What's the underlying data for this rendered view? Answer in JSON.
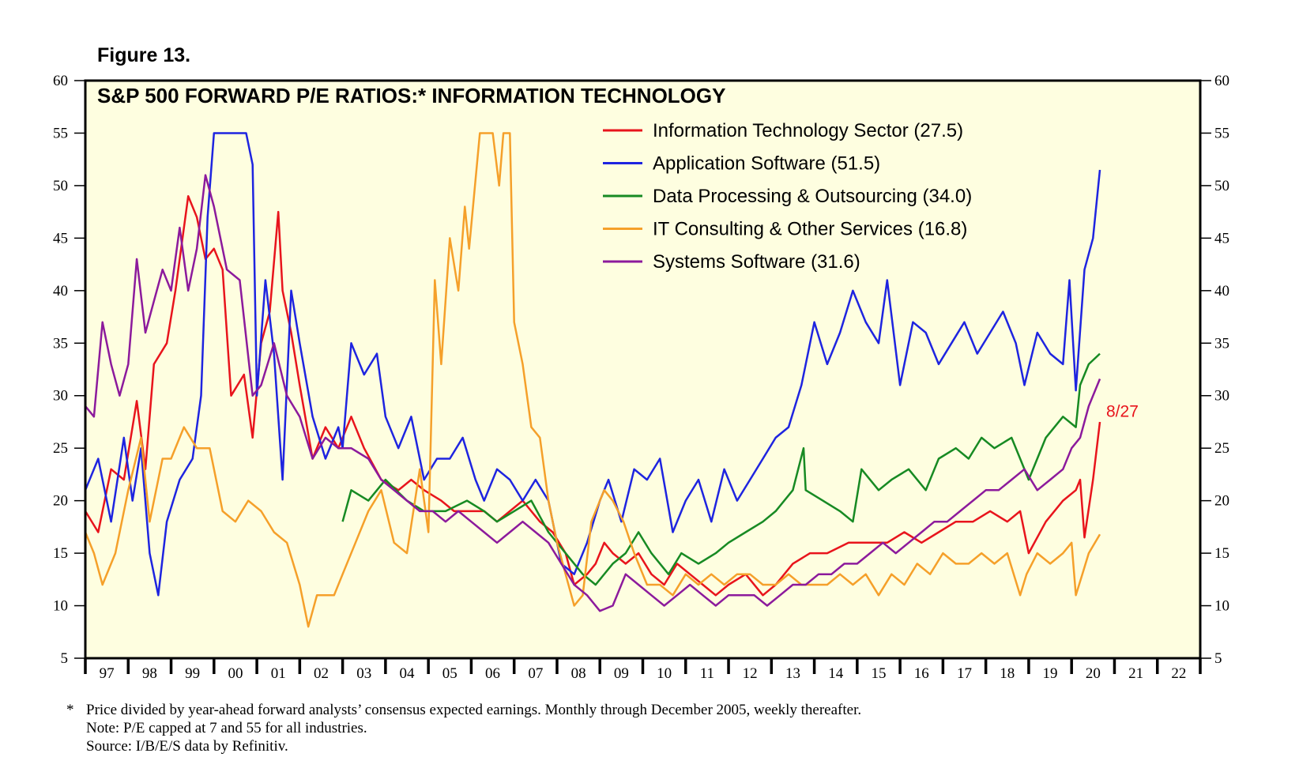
{
  "figure_label": "Figure 13.",
  "footnotes": {
    "star": "*",
    "lines": [
      "Price divided by year-ahead forward analysts’ consensus expected earnings. Monthly through December 2005, weekly thereafter.",
      "Note: P/E capped at 7 and 55 for all industries.",
      "Source: I/B/E/S data by Refinitiv."
    ]
  },
  "colors": {
    "plot_background": "#fefee0",
    "it_sector": "#e8141c",
    "application_software": "#1e24e0",
    "data_processing": "#178a23",
    "it_consulting": "#f5a02a",
    "systems_software": "#8c1a9c"
  },
  "chart_data": {
    "type": "line",
    "title": "S&P 500 FORWARD P/E RATIOS:* INFORMATION TECHNOLOGY",
    "xlabel": "",
    "ylabel": "",
    "xlim": [
      1997,
      2023
    ],
    "ylim": [
      5,
      60
    ],
    "y_ticks": [
      5,
      10,
      15,
      20,
      25,
      30,
      35,
      40,
      45,
      50,
      55,
      60
    ],
    "x_tick_labels": [
      "97",
      "98",
      "99",
      "00",
      "01",
      "02",
      "03",
      "04",
      "05",
      "06",
      "07",
      "08",
      "09",
      "10",
      "11",
      "12",
      "13",
      "14",
      "15",
      "16",
      "17",
      "18",
      "19",
      "20",
      "21",
      "22"
    ],
    "grid": false,
    "legend_position": "top-right",
    "annotation": {
      "text": "8/27",
      "x": 2020.66,
      "y": 28.5
    },
    "series": [
      {
        "key": "it_sector",
        "name": "Information Technology Sector (27.5)",
        "x": [
          1997.0,
          1997.3,
          1997.6,
          1997.9,
          1998.2,
          1998.4,
          1998.6,
          1998.9,
          1999.1,
          1999.4,
          1999.6,
          1999.8,
          2000.0,
          2000.2,
          2000.4,
          2000.7,
          2000.9,
          2001.1,
          2001.3,
          2001.5,
          2001.6,
          2001.8,
          2002.0,
          2002.3,
          2002.6,
          2002.9,
          2003.2,
          2003.5,
          2003.9,
          2004.3,
          2004.6,
          2004.9,
          2005.3,
          2005.6,
          2005.9,
          2006.3,
          2006.6,
          2006.9,
          2007.2,
          2007.6,
          2007.9,
          2008.2,
          2008.4,
          2008.7,
          2008.9,
          2009.1,
          2009.3,
          2009.6,
          2009.9,
          2010.2,
          2010.5,
          2010.8,
          2011.1,
          2011.4,
          2011.7,
          2012.0,
          2012.4,
          2012.8,
          2013.1,
          2013.5,
          2013.9,
          2014.3,
          2014.8,
          2015.2,
          2015.7,
          2016.1,
          2016.5,
          2016.9,
          2017.3,
          2017.7,
          2018.1,
          2018.5,
          2018.8,
          2019.0,
          2019.4,
          2019.8,
          2020.1,
          2020.2,
          2020.3,
          2020.5,
          2020.66
        ],
        "values": [
          19,
          17,
          23,
          22,
          29.5,
          23,
          33,
          35,
          40,
          49,
          47,
          43,
          44,
          42,
          30,
          32,
          26,
          35,
          38,
          47.5,
          40,
          36,
          31,
          24,
          27,
          25,
          28,
          25,
          22,
          21,
          22,
          21,
          20,
          19,
          19,
          19,
          18,
          19,
          20,
          18,
          17,
          15,
          12,
          13,
          14,
          16,
          15,
          14,
          15,
          13,
          12,
          14,
          13,
          12,
          11,
          12,
          13,
          11,
          12,
          14,
          15,
          15,
          16,
          16,
          16,
          17,
          16,
          17,
          18,
          18,
          19,
          18,
          19,
          15,
          18,
          20,
          21,
          22,
          16.5,
          22,
          27.5
        ]
      },
      {
        "key": "application_software",
        "name": "Application Software (51.5)",
        "x": [
          1997.0,
          1997.3,
          1997.6,
          1997.9,
          1998.1,
          1998.3,
          1998.5,
          1998.7,
          1998.9,
          1999.2,
          1999.5,
          1999.7,
          1999.85,
          2000.0,
          2000.3,
          2000.6,
          2000.75,
          2000.9,
          2001.0,
          2001.2,
          2001.4,
          2001.6,
          2001.8,
          2002.0,
          2002.3,
          2002.6,
          2002.9,
          2003.0,
          2003.2,
          2003.5,
          2003.8,
          2004.0,
          2004.3,
          2004.6,
          2004.9,
          2005.2,
          2005.5,
          2005.8,
          2006.1,
          2006.3,
          2006.6,
          2006.9,
          2007.2,
          2007.5,
          2007.8,
          2008.1,
          2008.4,
          2008.7,
          2009.0,
          2009.2,
          2009.5,
          2009.8,
          2010.1,
          2010.4,
          2010.7,
          2011.0,
          2011.3,
          2011.6,
          2011.9,
          2012.2,
          2012.5,
          2012.8,
          2013.1,
          2013.4,
          2013.7,
          2014.0,
          2014.3,
          2014.6,
          2014.9,
          2015.2,
          2015.5,
          2015.7,
          2016.0,
          2016.3,
          2016.6,
          2016.9,
          2017.2,
          2017.5,
          2017.8,
          2018.1,
          2018.4,
          2018.7,
          2018.9,
          2019.2,
          2019.5,
          2019.8,
          2019.95,
          2020.1,
          2020.3,
          2020.5,
          2020.66
        ],
        "values": [
          21,
          24,
          18,
          26,
          20,
          25,
          15,
          11,
          18,
          22,
          24,
          30,
          47,
          55,
          55,
          55,
          55,
          52,
          30,
          41,
          34,
          22,
          40,
          35,
          28,
          24,
          27,
          25,
          35,
          32,
          34,
          28,
          25,
          28,
          22,
          24,
          24,
          26,
          22,
          20,
          23,
          22,
          20,
          22,
          20,
          14,
          13,
          16,
          20,
          22,
          18,
          23,
          22,
          24,
          17,
          20,
          22,
          18,
          23,
          20,
          22,
          24,
          26,
          27,
          31,
          37,
          33,
          36,
          40,
          37,
          35,
          41,
          31,
          37,
          36,
          33,
          35,
          37,
          34,
          36,
          38,
          35,
          31,
          36,
          34,
          33,
          41,
          30.5,
          42,
          45,
          51.5
        ]
      },
      {
        "key": "data_processing",
        "name": "Data Processing & Outsourcing (34.0)",
        "x": [
          2003.0,
          2003.2,
          2003.6,
          2004.0,
          2004.5,
          2004.9,
          2005.4,
          2005.9,
          2006.3,
          2006.6,
          2007.0,
          2007.4,
          2007.8,
          2008.2,
          2008.6,
          2008.9,
          2009.3,
          2009.6,
          2009.9,
          2010.2,
          2010.6,
          2010.9,
          2011.3,
          2011.7,
          2012.0,
          2012.4,
          2012.8,
          2013.1,
          2013.5,
          2013.75,
          2013.8,
          2014.2,
          2014.6,
          2014.9,
          2015.1,
          2015.5,
          2015.8,
          2016.2,
          2016.6,
          2016.9,
          2017.3,
          2017.6,
          2017.9,
          2018.2,
          2018.6,
          2018.8,
          2019.0,
          2019.4,
          2019.8,
          2020.1,
          2020.2,
          2020.4,
          2020.66
        ],
        "values": [
          18,
          21,
          20,
          22,
          20,
          19,
          19,
          20,
          19,
          18,
          19,
          20,
          17,
          15,
          13,
          12,
          14,
          15,
          17,
          15,
          13,
          15,
          14,
          15,
          16,
          17,
          18,
          19,
          21,
          25,
          21,
          20,
          19,
          18,
          23,
          21,
          22,
          23,
          21,
          24,
          25,
          24,
          26,
          25,
          26,
          24,
          22,
          26,
          28,
          27,
          31,
          33,
          34
        ]
      },
      {
        "key": "it_consulting",
        "name": "IT Consulting & Other Services (16.8)",
        "x": [
          1997.0,
          1997.2,
          1997.4,
          1997.7,
          1998.0,
          1998.3,
          1998.5,
          1998.8,
          1999.0,
          1999.3,
          1999.6,
          1999.9,
          2000.2,
          2000.5,
          2000.8,
          2001.1,
          2001.4,
          2001.7,
          2002.0,
          2002.2,
          2002.4,
          2002.6,
          2002.8,
          2003.0,
          2003.3,
          2003.6,
          2003.9,
          2004.2,
          2004.5,
          2004.8,
          2005.0,
          2005.15,
          2005.3,
          2005.5,
          2005.7,
          2005.85,
          2005.95,
          2006.2,
          2006.3,
          2006.5,
          2006.65,
          2006.75,
          2006.8,
          2006.9,
          2007.0,
          2007.2,
          2007.4,
          2007.6,
          2007.8,
          2008.0,
          2008.2,
          2008.4,
          2008.6,
          2008.8,
          2009.1,
          2009.3,
          2009.55,
          2009.8,
          2010.1,
          2010.4,
          2010.7,
          2011.0,
          2011.3,
          2011.6,
          2011.9,
          2012.2,
          2012.5,
          2012.8,
          2013.1,
          2013.4,
          2013.7,
          2014.0,
          2014.3,
          2014.6,
          2014.9,
          2015.2,
          2015.5,
          2015.8,
          2016.1,
          2016.4,
          2016.7,
          2017.0,
          2017.3,
          2017.6,
          2017.9,
          2018.2,
          2018.5,
          2018.8,
          2018.95,
          2019.2,
          2019.5,
          2019.8,
          2020.0,
          2020.1,
          2020.25,
          2020.4,
          2020.66
        ],
        "values": [
          17,
          15,
          12,
          15,
          21,
          26,
          18,
          24,
          24,
          27,
          25,
          25,
          19,
          18,
          20,
          19,
          17,
          16,
          12,
          8,
          11,
          11,
          11,
          13,
          16,
          19,
          21,
          16,
          15,
          23,
          17,
          41,
          33,
          45,
          40,
          48,
          44,
          55,
          55,
          55,
          50,
          55,
          55,
          55,
          37,
          33,
          27,
          26,
          20,
          16,
          13,
          10,
          11,
          18,
          21,
          20,
          18,
          15,
          12,
          12,
          11,
          13,
          12,
          13,
          12,
          13,
          13,
          12,
          12,
          13,
          12,
          12,
          12,
          13,
          12,
          13,
          11,
          13,
          12,
          14,
          13,
          15,
          14,
          14,
          15,
          14,
          15,
          11,
          13,
          15,
          14,
          15,
          16,
          11,
          13,
          15,
          16.8
        ]
      },
      {
        "key": "systems_software",
        "name": "Systems Software (31.6)",
        "x": [
          1997.0,
          1997.2,
          1997.4,
          1997.6,
          1997.8,
          1998.0,
          1998.2,
          1998.4,
          1998.6,
          1998.8,
          1999.0,
          1999.2,
          1999.4,
          1999.6,
          1999.8,
          2000.0,
          2000.3,
          2000.6,
          2000.9,
          2001.1,
          2001.4,
          2001.7,
          2002.0,
          2002.3,
          2002.6,
          2002.9,
          2003.2,
          2003.6,
          2003.9,
          2004.2,
          2004.5,
          2004.8,
          2005.1,
          2005.4,
          2005.7,
          2006.0,
          2006.3,
          2006.6,
          2006.9,
          2007.2,
          2007.5,
          2007.8,
          2008.1,
          2008.4,
          2008.7,
          2009.0,
          2009.3,
          2009.6,
          2009.9,
          2010.2,
          2010.5,
          2010.8,
          2011.1,
          2011.4,
          2011.7,
          2012.0,
          2012.3,
          2012.6,
          2012.9,
          2013.2,
          2013.5,
          2013.8,
          2014.1,
          2014.4,
          2014.7,
          2015.0,
          2015.3,
          2015.6,
          2015.9,
          2016.2,
          2016.5,
          2016.8,
          2017.1,
          2017.4,
          2017.7,
          2018.0,
          2018.3,
          2018.6,
          2018.9,
          2019.2,
          2019.5,
          2019.8,
          2020.0,
          2020.2,
          2020.4,
          2020.66
        ],
        "values": [
          29,
          28,
          37,
          33,
          30,
          33,
          43,
          36,
          39,
          42,
          40,
          46,
          40,
          44,
          51,
          48,
          42,
          41,
          30,
          31,
          35,
          30,
          28,
          24,
          26,
          25,
          25,
          24,
          22,
          21,
          20,
          19,
          19,
          18,
          19,
          18,
          17,
          16,
          17,
          18,
          17,
          16,
          14,
          12,
          11,
          9.5,
          10,
          13,
          12,
          11,
          10,
          11,
          12,
          11,
          10,
          11,
          11,
          11,
          10,
          11,
          12,
          12,
          13,
          13,
          14,
          14,
          15,
          16,
          15,
          16,
          17,
          18,
          18,
          19,
          20,
          21,
          21,
          22,
          23,
          21,
          22,
          23,
          25,
          26,
          29,
          31.6
        ]
      }
    ]
  }
}
